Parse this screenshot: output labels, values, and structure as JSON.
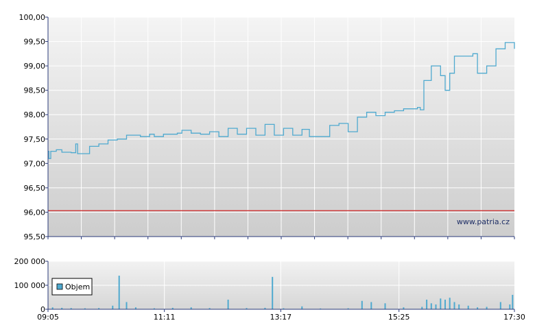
{
  "chart_data": [
    {
      "type": "line",
      "title": "",
      "xlabel": "",
      "ylabel": "",
      "ylim": [
        95.5,
        100.0
      ],
      "y_ticks": [
        "95,50",
        "96,00",
        "96,50",
        "97,00",
        "97,50",
        "98,00",
        "98,50",
        "99,00",
        "99,50",
        "100,00"
      ],
      "grid": true,
      "reference_line": {
        "value": 96.03,
        "color": "#d04040"
      },
      "series": [
        {
          "color": "#4ea9cf",
          "points": [
            [
              "09:05",
              97.25
            ],
            [
              "09:06",
              97.1
            ],
            [
              "09:08",
              97.25
            ],
            [
              "09:14",
              97.28
            ],
            [
              "09:20",
              97.23
            ],
            [
              "09:30",
              97.22
            ],
            [
              "09:35",
              97.4
            ],
            [
              "09:37",
              97.2
            ],
            [
              "09:45",
              97.2
            ],
            [
              "09:50",
              97.35
            ],
            [
              "10:00",
              97.4
            ],
            [
              "10:10",
              97.48
            ],
            [
              "10:20",
              97.5
            ],
            [
              "10:30",
              97.58
            ],
            [
              "10:45",
              97.55
            ],
            [
              "10:55",
              97.6
            ],
            [
              "11:00",
              97.55
            ],
            [
              "11:10",
              97.6
            ],
            [
              "11:25",
              97.62
            ],
            [
              "11:30",
              97.68
            ],
            [
              "11:40",
              97.62
            ],
            [
              "11:50",
              97.6
            ],
            [
              "12:00",
              97.65
            ],
            [
              "12:10",
              97.55
            ],
            [
              "12:20",
              97.72
            ],
            [
              "12:30",
              97.6
            ],
            [
              "12:40",
              97.72
            ],
            [
              "12:50",
              97.58
            ],
            [
              "13:00",
              97.8
            ],
            [
              "13:10",
              97.58
            ],
            [
              "13:20",
              97.72
            ],
            [
              "13:30",
              97.58
            ],
            [
              "13:40",
              97.7
            ],
            [
              "13:48",
              97.55
            ],
            [
              "14:00",
              97.55
            ],
            [
              "14:08",
              97.55
            ],
            [
              "14:10",
              97.78
            ],
            [
              "14:20",
              97.82
            ],
            [
              "14:30",
              97.65
            ],
            [
              "14:35",
              97.65
            ],
            [
              "14:40",
              97.95
            ],
            [
              "14:50",
              98.05
            ],
            [
              "15:00",
              97.98
            ],
            [
              "15:10",
              98.05
            ],
            [
              "15:20",
              98.08
            ],
            [
              "15:30",
              98.12
            ],
            [
              "15:45",
              98.15
            ],
            [
              "15:48",
              98.1
            ],
            [
              "15:52",
              98.7
            ],
            [
              "16:00",
              99.0
            ],
            [
              "16:10",
              98.8
            ],
            [
              "16:15",
              98.5
            ],
            [
              "16:20",
              98.85
            ],
            [
              "16:25",
              99.2
            ],
            [
              "16:45",
              99.25
            ],
            [
              "16:50",
              98.85
            ],
            [
              "17:00",
              99.0
            ],
            [
              "17:10",
              99.35
            ],
            [
              "17:20",
              99.48
            ],
            [
              "17:30",
              99.35
            ]
          ]
        }
      ]
    },
    {
      "type": "bar",
      "title": "",
      "xlabel": "",
      "ylabel": "",
      "ylim": [
        0,
        200000
      ],
      "y_ticks": [
        "0",
        "100 000",
        "200 000"
      ],
      "x_ticks": [
        "09:05",
        "11:11",
        "13:17",
        "15:25",
        "17:30"
      ],
      "grid": true,
      "legend": {
        "position": "left",
        "entries": [
          {
            "label": "Objem",
            "color": "#4ea9cf"
          }
        ]
      },
      "series": [
        {
          "name": "Objem",
          "color": "#4ea9cf",
          "points": [
            [
              "09:10",
              8000
            ],
            [
              "09:20",
              6000
            ],
            [
              "09:30",
              5000
            ],
            [
              "09:45",
              4000
            ],
            [
              "10:00",
              5000
            ],
            [
              "10:15",
              15000
            ],
            [
              "10:22",
              140000
            ],
            [
              "10:30",
              30000
            ],
            [
              "10:40",
              8000
            ],
            [
              "11:00",
              4000
            ],
            [
              "11:20",
              6000
            ],
            [
              "11:40",
              8000
            ],
            [
              "12:00",
              5000
            ],
            [
              "12:20",
              40000
            ],
            [
              "12:40",
              5000
            ],
            [
              "13:00",
              6000
            ],
            [
              "13:08",
              135000
            ],
            [
              "13:20",
              4000
            ],
            [
              "13:40",
              12000
            ],
            [
              "14:00",
              3000
            ],
            [
              "14:30",
              4000
            ],
            [
              "14:45",
              35000
            ],
            [
              "14:55",
              30000
            ],
            [
              "15:10",
              25000
            ],
            [
              "15:30",
              8000
            ],
            [
              "15:50",
              10000
            ],
            [
              "15:55",
              40000
            ],
            [
              "16:00",
              25000
            ],
            [
              "16:05",
              20000
            ],
            [
              "16:10",
              45000
            ],
            [
              "16:15",
              40000
            ],
            [
              "16:20",
              48000
            ],
            [
              "16:25",
              30000
            ],
            [
              "16:30",
              20000
            ],
            [
              "16:40",
              15000
            ],
            [
              "16:50",
              8000
            ],
            [
              "17:00",
              10000
            ],
            [
              "17:15",
              30000
            ],
            [
              "17:25",
              20000
            ],
            [
              "17:28",
              60000
            ]
          ]
        }
      ]
    }
  ],
  "watermark": "www.patria.cz"
}
